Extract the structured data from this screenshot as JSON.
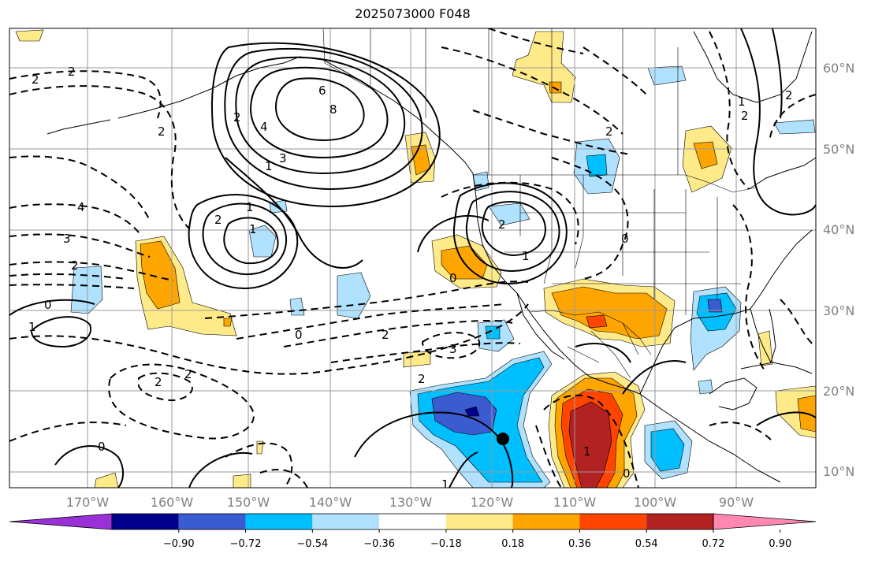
{
  "title": "2025073000 F048",
  "lat_labels": [
    "60°N",
    "50°N",
    "40°N",
    "30°N",
    "20°N",
    "10°N"
  ],
  "lon_labels": [
    "170°W",
    "160°W",
    "150°W",
    "140°W",
    "130°W",
    "120°W",
    "110°W",
    "100°W",
    "90°W"
  ],
  "colorbar": {
    "tick_labels": [
      "−0.90",
      "−0.72",
      "−0.54",
      "−0.36",
      "−0.18",
      "0.18",
      "0.36",
      "0.54",
      "0.72",
      "0.90"
    ],
    "colors": [
      "#9b30d9",
      "#00008b",
      "#3b5bd1",
      "#00bfff",
      "#b0e2ff",
      "#ffffff",
      "#ffea8a",
      "#ffa500",
      "#ff4500",
      "#b22222",
      "#ff88b0"
    ]
  },
  "contour_labels": [
    "2",
    "2",
    "4",
    "3",
    "2",
    "0",
    "1",
    "6",
    "8",
    "4",
    "3",
    "2",
    "1",
    "1",
    "2",
    "1",
    "2",
    "2",
    "1",
    "0",
    "2",
    "0",
    "2",
    "3",
    "2",
    "1",
    "2",
    "2",
    "0",
    "0",
    "1",
    "0",
    "1",
    "2",
    "2"
  ],
  "storm_marker": "tropical-cyclone-center"
}
